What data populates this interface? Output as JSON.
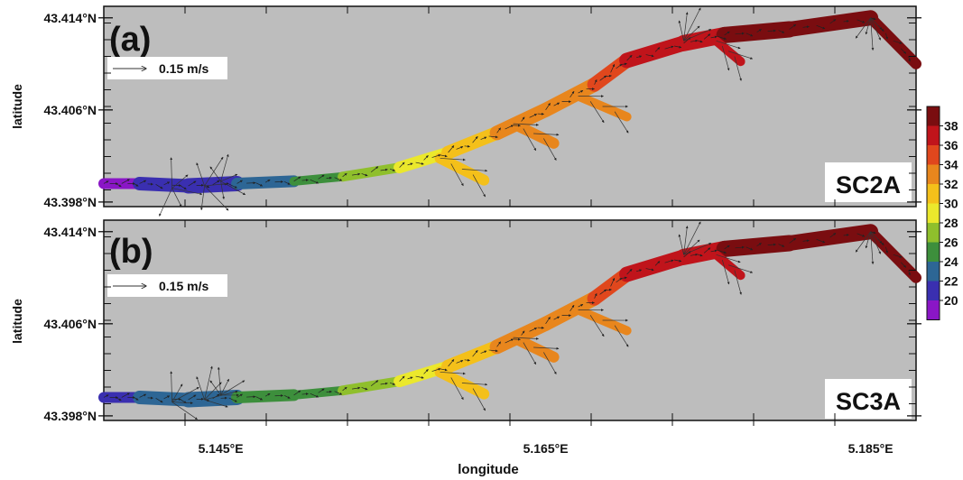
{
  "figure": {
    "xlabel": "longitude",
    "ylabel": "latitude",
    "x_ticks": [
      {
        "lon": 5.145,
        "label": "5.145°E"
      },
      {
        "lon": 5.165,
        "label": "5.165°E"
      },
      {
        "lon": 5.185,
        "label": "5.185°E"
      }
    ],
    "y_ticks": [
      {
        "lat": 43.414,
        "label": "43.414°N"
      },
      {
        "lat": 43.406,
        "label": "43.406°N"
      },
      {
        "lat": 43.398,
        "label": "43.398°N"
      }
    ],
    "lon_range": [
      5.1378,
      5.1878
    ],
    "lat_range": [
      43.3976,
      43.415
    ]
  },
  "colorbar": {
    "values": [
      38,
      36,
      34,
      32,
      30,
      28,
      26,
      24,
      22,
      20
    ],
    "colors": [
      "#7a0d10",
      "#c0141b",
      "#e0471d",
      "#e8861d",
      "#f4c01a",
      "#ebe82c",
      "#8fbf2c",
      "#3d8f3c",
      "#2d6695",
      "#3a2fb0",
      "#8a16c6"
    ]
  },
  "panels": [
    {
      "label": "(a)",
      "scenario": "SC2A",
      "scale_label": "0.15 m/s",
      "background": "#bdbdbd"
    },
    {
      "label": "(b)",
      "scenario": "SC3A",
      "scale_label": "0.15 m/s",
      "background": "#bdbdbd"
    }
  ]
}
